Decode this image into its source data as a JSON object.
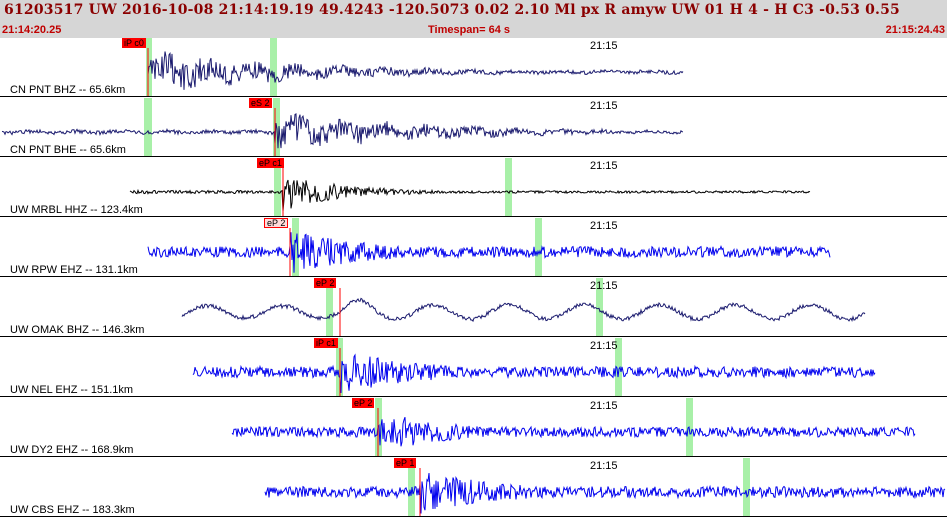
{
  "header": {
    "event_line": "61203517 UW 2016-10-08 21:14:19.19   49.4243 -120.5073   0.02  2.10 Ml  px  R amyw     UW 01  H   4  -  H C3   -0.53  0.55",
    "start_time": "21:14:20.25",
    "timespan": "Timespan=  64 s",
    "end_time": "21:15:24.43"
  },
  "minute_marker": "21:15",
  "traces": [
    {
      "label": "CN PNT  BHZ --  65.6km",
      "pick": "iP c0",
      "color": "#1a1a6e",
      "style": "broad",
      "start": 148,
      "end": 683,
      "onset": 148,
      "amp": 18
    },
    {
      "label": "CN PNT  BHE --  65.6km",
      "pick": "eS 2",
      "color": "#1a1a6e",
      "style": "broad",
      "start": 2,
      "end": 683,
      "onset": 275,
      "amp": 16
    },
    {
      "label": "UW MRBL HHZ --  123.4km",
      "pick": "eP c1",
      "color": "#000000",
      "style": "burst",
      "start": 130,
      "end": 810,
      "onset": 283,
      "amp": 20
    },
    {
      "label": "UW RPW EHZ --  131.1km",
      "pick": "eP 2",
      "color": "#0000ee",
      "style": "noisy",
      "start": 148,
      "end": 830,
      "onset": 290,
      "amp": 22
    },
    {
      "label": "UW OMAK BHZ --  146.3km",
      "pick": "eP 2",
      "color": "#1a1a6e",
      "style": "long",
      "start": 182,
      "end": 865,
      "onset": 340,
      "amp": 24
    },
    {
      "label": "UW NEL EHZ --  151.1km",
      "pick": "iP c1",
      "color": "#0000ee",
      "style": "noisy",
      "start": 193,
      "end": 875,
      "onset": 340,
      "amp": 22
    },
    {
      "label": "UW DY2 EHZ --  168.9km",
      "pick": "eP 2",
      "color": "#0000ee",
      "style": "noisy",
      "start": 232,
      "end": 915,
      "onset": 378,
      "amp": 20
    },
    {
      "label": "UW CBS EHZ --  183.3km",
      "pick": "eP 1",
      "color": "#0000ee",
      "style": "noisy",
      "start": 265,
      "end": 945,
      "onset": 420,
      "amp": 22
    }
  ],
  "colors": {
    "header_bg": "#d6d6d6",
    "header_text": "#8b0000",
    "pick_flag": "#ff0000",
    "sample_window": "#a8f0a8"
  }
}
